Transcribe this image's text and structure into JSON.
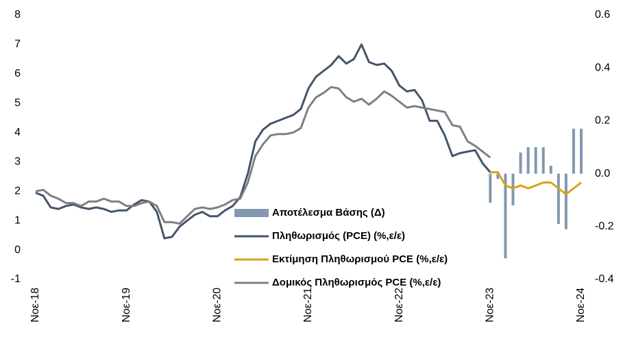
{
  "chart_data": {
    "type": "combo",
    "categories": [
      "Νοε-18",
      null,
      null,
      null,
      null,
      null,
      null,
      null,
      null,
      null,
      null,
      null,
      "Νοε-19",
      null,
      null,
      null,
      null,
      null,
      null,
      null,
      null,
      null,
      null,
      null,
      "Νοε-20",
      null,
      null,
      null,
      null,
      null,
      null,
      null,
      null,
      null,
      null,
      null,
      "Νοε-21",
      null,
      null,
      null,
      null,
      null,
      null,
      null,
      null,
      null,
      null,
      null,
      "Νοε-22",
      null,
      null,
      null,
      null,
      null,
      null,
      null,
      null,
      null,
      null,
      null,
      "Νοε-23",
      null,
      null,
      null,
      null,
      null,
      null,
      null,
      null,
      null,
      null,
      null,
      "Νοε-24"
    ],
    "ylim": [
      -1,
      8
    ],
    "yticks": [
      -1,
      0,
      1,
      2,
      3,
      4,
      5,
      6,
      7,
      8
    ],
    "y2lim": [
      -0.4,
      0.6
    ],
    "y2ticks": [
      -0.4,
      -0.2,
      {
        "value": 0,
        "label": "0.0"
      },
      0.2,
      0.4,
      0.6
    ],
    "series": [
      {
        "name": "Αποτέλεσμα Βάσης (Δ)",
        "type": "bar",
        "axis": "y2",
        "color": "#8497b0",
        "values": [
          null,
          null,
          null,
          null,
          null,
          null,
          null,
          null,
          null,
          null,
          null,
          null,
          null,
          null,
          null,
          null,
          null,
          null,
          null,
          null,
          null,
          null,
          null,
          null,
          null,
          null,
          null,
          null,
          null,
          null,
          null,
          null,
          null,
          null,
          null,
          null,
          null,
          null,
          null,
          null,
          null,
          null,
          null,
          null,
          null,
          null,
          null,
          null,
          null,
          null,
          null,
          null,
          null,
          null,
          null,
          null,
          null,
          null,
          null,
          null,
          -0.11,
          -0.02,
          -0.32,
          -0.12,
          0.08,
          0.1,
          0.1,
          0.1,
          0.03,
          -0.19,
          -0.21,
          0.17,
          0.17
        ]
      },
      {
        "name": "Πληθωρισμός (PCE) (%,ε/ε)",
        "type": "line",
        "color": "#44546a",
        "values": [
          1.95,
          1.85,
          1.45,
          1.4,
          1.5,
          1.55,
          1.45,
          1.4,
          1.45,
          1.4,
          1.3,
          1.35,
          1.35,
          1.55,
          1.7,
          1.65,
          1.3,
          0.4,
          0.45,
          0.8,
          1.0,
          1.2,
          1.3,
          1.15,
          1.15,
          1.35,
          1.5,
          1.8,
          2.6,
          3.7,
          4.1,
          4.3,
          4.4,
          4.5,
          4.6,
          4.8,
          5.5,
          5.9,
          6.1,
          6.3,
          6.6,
          6.35,
          6.5,
          7.0,
          6.4,
          6.3,
          6.35,
          6.1,
          5.6,
          5.4,
          5.45,
          5.1,
          4.4,
          4.4,
          3.9,
          3.2,
          3.3,
          3.35,
          3.4,
          2.95,
          2.65,
          null,
          null,
          null,
          null,
          null,
          null,
          null,
          null,
          null,
          null,
          null,
          null
        ]
      },
      {
        "name": "Εκτίμηση Πληθωρισμού PCE  (%,ε/ε)",
        "type": "line",
        "color": "#d8a21a",
        "values": [
          null,
          null,
          null,
          null,
          null,
          null,
          null,
          null,
          null,
          null,
          null,
          null,
          null,
          null,
          null,
          null,
          null,
          null,
          null,
          null,
          null,
          null,
          null,
          null,
          null,
          null,
          null,
          null,
          null,
          null,
          null,
          null,
          null,
          null,
          null,
          null,
          null,
          null,
          null,
          null,
          null,
          null,
          null,
          null,
          null,
          null,
          null,
          null,
          null,
          null,
          null,
          null,
          null,
          null,
          null,
          null,
          null,
          null,
          null,
          null,
          2.65,
          2.65,
          2.2,
          2.1,
          2.2,
          2.1,
          2.2,
          2.3,
          2.3,
          2.1,
          1.9,
          2.1,
          2.3
        ]
      },
      {
        "name": "Δομικός Πληθωρισμός PCE (%,ε/ε)",
        "type": "line",
        "color": "#7f7f7f",
        "values": [
          2.0,
          2.05,
          1.85,
          1.75,
          1.6,
          1.6,
          1.5,
          1.65,
          1.65,
          1.75,
          1.65,
          1.65,
          1.5,
          1.5,
          1.6,
          1.65,
          1.5,
          0.95,
          0.95,
          0.9,
          1.15,
          1.4,
          1.45,
          1.4,
          1.45,
          1.55,
          1.7,
          1.75,
          2.3,
          3.2,
          3.6,
          3.9,
          3.95,
          3.95,
          4.0,
          4.15,
          4.85,
          5.2,
          5.35,
          5.55,
          5.5,
          5.2,
          5.05,
          5.15,
          4.95,
          5.15,
          5.4,
          5.25,
          5.05,
          4.85,
          4.9,
          4.85,
          4.8,
          4.75,
          4.7,
          4.25,
          4.2,
          3.7,
          3.55,
          3.35,
          3.15,
          null,
          null,
          null,
          null,
          null,
          null,
          null,
          null,
          null,
          null,
          null,
          null
        ]
      }
    ]
  }
}
